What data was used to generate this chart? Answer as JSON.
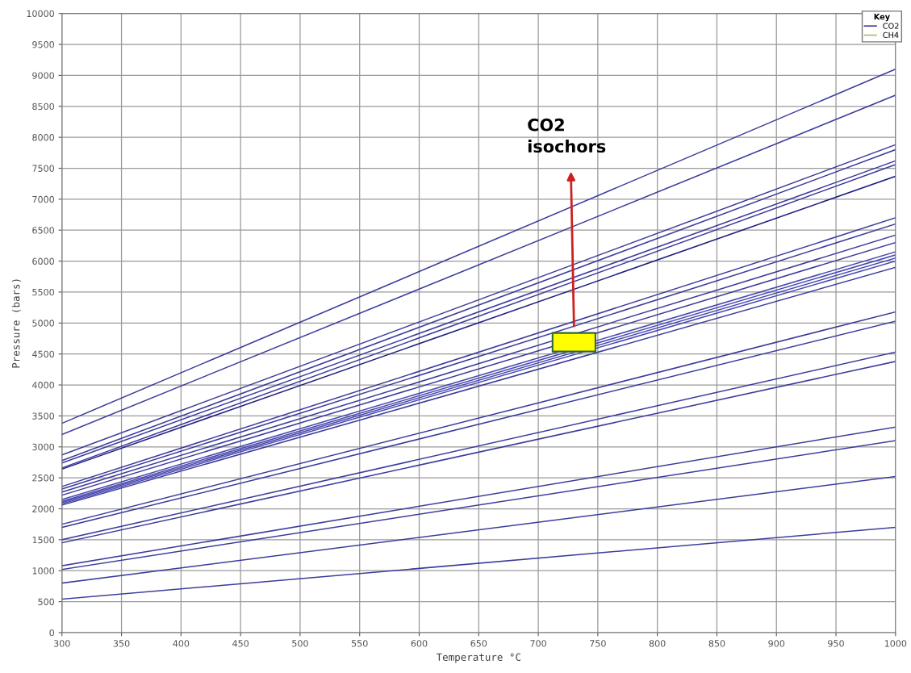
{
  "chart_data": {
    "type": "line",
    "xlabel": "Temperature °C",
    "ylabel": "Pressure (bars)",
    "legend_title": "Key",
    "legend": "top right",
    "grid": true,
    "marker": "none",
    "line_style": "solid",
    "x": [
      300,
      1000
    ],
    "xlim": [
      300,
      1000
    ],
    "xticks": [
      300,
      350,
      400,
      450,
      500,
      550,
      600,
      650,
      700,
      750,
      800,
      850,
      900,
      950,
      1000
    ],
    "ylim": [
      0,
      10000
    ],
    "yticks": [
      0,
      500,
      1000,
      1500,
      2000,
      2500,
      3000,
      3500,
      4000,
      4500,
      5000,
      5500,
      6000,
      6500,
      7000,
      7500,
      8000,
      8500,
      9000,
      9500,
      10000
    ],
    "annotations": [
      {
        "text": "CO2\nisochors",
        "x": 730,
        "y": 4950
      }
    ],
    "series": [
      {
        "name": "CO2",
        "color": "#3c3c9c",
        "values": [
          3380,
          9100
        ]
      },
      {
        "color": "#3c3c9c",
        "values": [
          3200,
          8680
        ]
      },
      {
        "color": "#3c3c9c",
        "values": [
          2870,
          7880
        ]
      },
      {
        "color": "#3c3c9c",
        "values": [
          2780,
          7800
        ]
      },
      {
        "color": "#3c3c9c",
        "values": [
          2740,
          7620
        ]
      },
      {
        "color": "#3c3c9c",
        "values": [
          2660,
          7560
        ]
      },
      {
        "color": "#1e1e80",
        "values": [
          2640,
          7370
        ]
      },
      {
        "color": "#3c3c9c",
        "values": [
          2360,
          6700
        ]
      },
      {
        "color": "#3c3c9c",
        "values": [
          2320,
          6600
        ]
      },
      {
        "color": "#3c3c9c",
        "values": [
          2270,
          6420
        ]
      },
      {
        "color": "#3c3c9c",
        "values": [
          2220,
          6300
        ]
      },
      {
        "color": "#4a4ab0",
        "values": [
          2150,
          6150
        ]
      },
      {
        "color": "#4a4ab0",
        "values": [
          2120,
          6100
        ]
      },
      {
        "color": "#4a4ab0",
        "values": [
          2100,
          6050
        ]
      },
      {
        "color": "#4a4ab0",
        "values": [
          2080,
          6000
        ]
      },
      {
        "color": "#3c3c9c",
        "values": [
          2060,
          5900
        ]
      },
      {
        "color": "#3c3c9c",
        "values": [
          1750,
          5180
        ]
      },
      {
        "color": "#3c3c9c",
        "values": [
          1700,
          5030
        ]
      },
      {
        "color": "#3c3c9c",
        "values": [
          1500,
          4530
        ]
      },
      {
        "color": "#3c3c9c",
        "values": [
          1450,
          4380
        ]
      },
      {
        "color": "#3c3c9c",
        "values": [
          1080,
          3320
        ]
      },
      {
        "color": "#3c3c9c",
        "values": [
          1020,
          3100
        ]
      },
      {
        "color": "#3c3c9c",
        "values": [
          800,
          2520
        ]
      },
      {
        "color": "#3c3c9c",
        "values": [
          540,
          1700
        ]
      },
      {
        "name": "CH4",
        "color": "#b5b56a",
        "values": [
          null,
          null
        ]
      }
    ]
  }
}
